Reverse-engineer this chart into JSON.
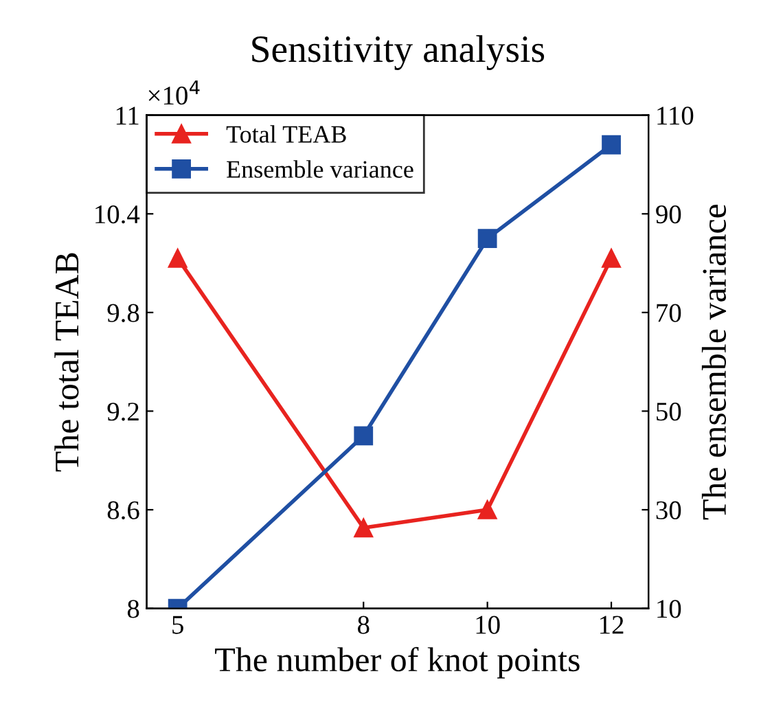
{
  "chart_data": {
    "type": "line",
    "title": "Sensitivity analysis",
    "xlabel": "The number of knot points",
    "ylabel": "The total TEAB",
    "y2label": "The ensemble variance",
    "annotations": [
      "×10$^{4}$"
    ],
    "x": [
      5,
      8,
      10,
      12
    ],
    "series": [
      {
        "name": "Total TEAB",
        "color": "#e8231f",
        "values": [
          10.13,
          8.49,
          8.6,
          10.13
        ],
        "marker": "triangle"
      },
      {
        "name": "Ensemble variance",
        "color": "#1f4fa3",
        "values": [
          10,
          45,
          85,
          104
        ],
        "marker": "square",
        "axis": "y2"
      }
    ],
    "xlim": [
      4.5,
      12.6
    ],
    "xticks": [
      5,
      8,
      10,
      12
    ],
    "ylim": [
      8,
      11
    ],
    "yticks": [
      8,
      8.6,
      9.2,
      9.8,
      10.4,
      11
    ],
    "y2lim": [
      10,
      110
    ],
    "y2ticks": [
      10,
      30,
      50,
      70,
      90,
      110
    ],
    "grid": false,
    "legend": "top left",
    "line_style": "solid"
  }
}
